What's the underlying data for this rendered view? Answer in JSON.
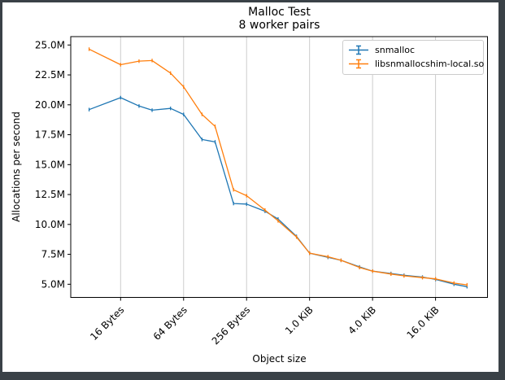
{
  "window": {
    "frame_color": "#3a4147",
    "background": "#ffffff"
  },
  "colors": {
    "series_blue": "#1f77b4",
    "series_orange": "#ff7f0e",
    "gridline": "#cccccc",
    "spine": "#000000",
    "text": "#000000",
    "legend_border": "#cccccc"
  },
  "chart_data": {
    "type": "line",
    "title": "Malloc Test",
    "subtitle": "8 worker pairs",
    "xlabel": "Object size",
    "ylabel": "Allocations per second",
    "x_scale": "log2",
    "x_unit": "bytes",
    "grid": "vertical-only",
    "legend_position": "upper right",
    "xlim_log2": [
      2.417,
      15.65
    ],
    "ylim_millions": [
      3.9,
      25.7
    ],
    "x_ticks": [
      {
        "label": "16 Bytes",
        "log2": 4
      },
      {
        "label": "64 Bytes",
        "log2": 6
      },
      {
        "label": "256 Bytes",
        "log2": 8
      },
      {
        "label": "1.0 KiB",
        "log2": 10
      },
      {
        "label": "4.0 KiB",
        "log2": 12
      },
      {
        "label": "16.0 KiB",
        "log2": 14
      }
    ],
    "y_ticks": [
      {
        "label": "5.0M",
        "value": 5.0
      },
      {
        "label": "7.5M",
        "value": 7.5
      },
      {
        "label": "10.0M",
        "value": 10.0
      },
      {
        "label": "12.5M",
        "value": 12.5
      },
      {
        "label": "15.0M",
        "value": 15.0
      },
      {
        "label": "17.5M",
        "value": 17.5
      },
      {
        "label": "20.0M",
        "value": 20.0
      },
      {
        "label": "22.5M",
        "value": 22.5
      },
      {
        "label": "25.0M",
        "value": 25.0
      }
    ],
    "sizes_bytes": [
      8,
      16,
      24,
      32,
      48,
      64,
      96,
      128,
      192,
      256,
      384,
      512,
      768,
      1024,
      1536,
      2048,
      3072,
      4096,
      6144,
      8192,
      12288,
      16384,
      24576,
      32768
    ],
    "series": [
      {
        "name": "snmalloc",
        "color": "#1f77b4",
        "values_millions": [
          19.6,
          20.6,
          19.9,
          19.55,
          19.7,
          19.2,
          17.1,
          16.9,
          11.75,
          11.7,
          11.1,
          10.45,
          9.0,
          7.6,
          7.25,
          7.0,
          6.45,
          6.1,
          5.9,
          5.75,
          5.6,
          5.4,
          5.0,
          4.8
        ]
      },
      {
        "name": "libsnmallocshim-local.so",
        "color": "#ff7f0e",
        "values_millions": [
          24.65,
          23.35,
          23.65,
          23.7,
          22.65,
          21.5,
          19.2,
          18.2,
          12.9,
          12.4,
          11.2,
          10.3,
          8.95,
          7.6,
          7.3,
          7.0,
          6.4,
          6.1,
          5.85,
          5.7,
          5.55,
          5.45,
          5.1,
          4.95
        ]
      }
    ]
  }
}
